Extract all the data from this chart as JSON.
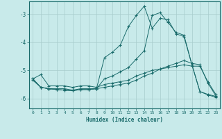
{
  "xlabel": "Humidex (Indice chaleur)",
  "background_color": "#c8eaea",
  "line_color": "#1a6b6b",
  "grid_color": "#a8cccc",
  "xlim": [
    -0.5,
    23.5
  ],
  "ylim": [
    -6.35,
    -2.55
  ],
  "yticks": [
    -6,
    -5,
    -4,
    -3
  ],
  "xticks": [
    0,
    1,
    2,
    3,
    4,
    5,
    6,
    7,
    8,
    9,
    10,
    11,
    12,
    13,
    14,
    15,
    16,
    17,
    18,
    19,
    20,
    21,
    22,
    23
  ],
  "series1_x": [
    0,
    1,
    2,
    3,
    4,
    5,
    6,
    7,
    8,
    9,
    10,
    11,
    12,
    13,
    14,
    15,
    16,
    17,
    18,
    19,
    20,
    21,
    22,
    23
  ],
  "series1_y": [
    -5.3,
    -5.15,
    -5.55,
    -5.55,
    -5.55,
    -5.6,
    -5.55,
    -5.55,
    -5.6,
    -5.5,
    -5.45,
    -5.4,
    -5.35,
    -5.2,
    -5.1,
    -5.0,
    -4.95,
    -4.9,
    -4.85,
    -4.8,
    -4.85,
    -4.85,
    -5.4,
    -5.85
  ],
  "series2_x": [
    0,
    1,
    2,
    3,
    4,
    5,
    6,
    7,
    8,
    9,
    10,
    11,
    12,
    13,
    14,
    15,
    16,
    17,
    18,
    19,
    20,
    21,
    22,
    23
  ],
  "series2_y": [
    -5.35,
    -5.6,
    -5.65,
    -5.65,
    -5.65,
    -5.7,
    -5.65,
    -5.65,
    -5.65,
    -5.6,
    -5.55,
    -5.5,
    -5.45,
    -5.35,
    -5.2,
    -5.1,
    -4.95,
    -4.85,
    -4.75,
    -4.65,
    -4.75,
    -4.8,
    -5.45,
    -5.9
  ],
  "series3_x": [
    0,
    1,
    2,
    3,
    4,
    5,
    6,
    7,
    8,
    9,
    10,
    11,
    12,
    13,
    14,
    15,
    16,
    17,
    18,
    19,
    20,
    21,
    22,
    23
  ],
  "series3_y": [
    -5.3,
    -5.6,
    -5.65,
    -5.68,
    -5.7,
    -5.72,
    -5.68,
    -5.68,
    -5.65,
    -4.55,
    -4.35,
    -4.1,
    -3.45,
    -3.05,
    -2.72,
    -3.5,
    -3.15,
    -3.2,
    -3.7,
    -3.8,
    -4.8,
    -5.75,
    -5.85,
    -5.92
  ],
  "series4_x": [
    0,
    1,
    2,
    3,
    4,
    5,
    6,
    7,
    8,
    9,
    10,
    11,
    12,
    13,
    14,
    15,
    16,
    17,
    18,
    19,
    20,
    21,
    22,
    23
  ],
  "series4_y": [
    -5.3,
    -5.6,
    -5.65,
    -5.68,
    -5.7,
    -5.72,
    -5.68,
    -5.68,
    -5.65,
    -5.3,
    -5.2,
    -5.05,
    -4.9,
    -4.6,
    -4.3,
    -3.05,
    -2.95,
    -3.3,
    -3.65,
    -3.75,
    -4.8,
    -5.75,
    -5.87,
    -5.95
  ]
}
